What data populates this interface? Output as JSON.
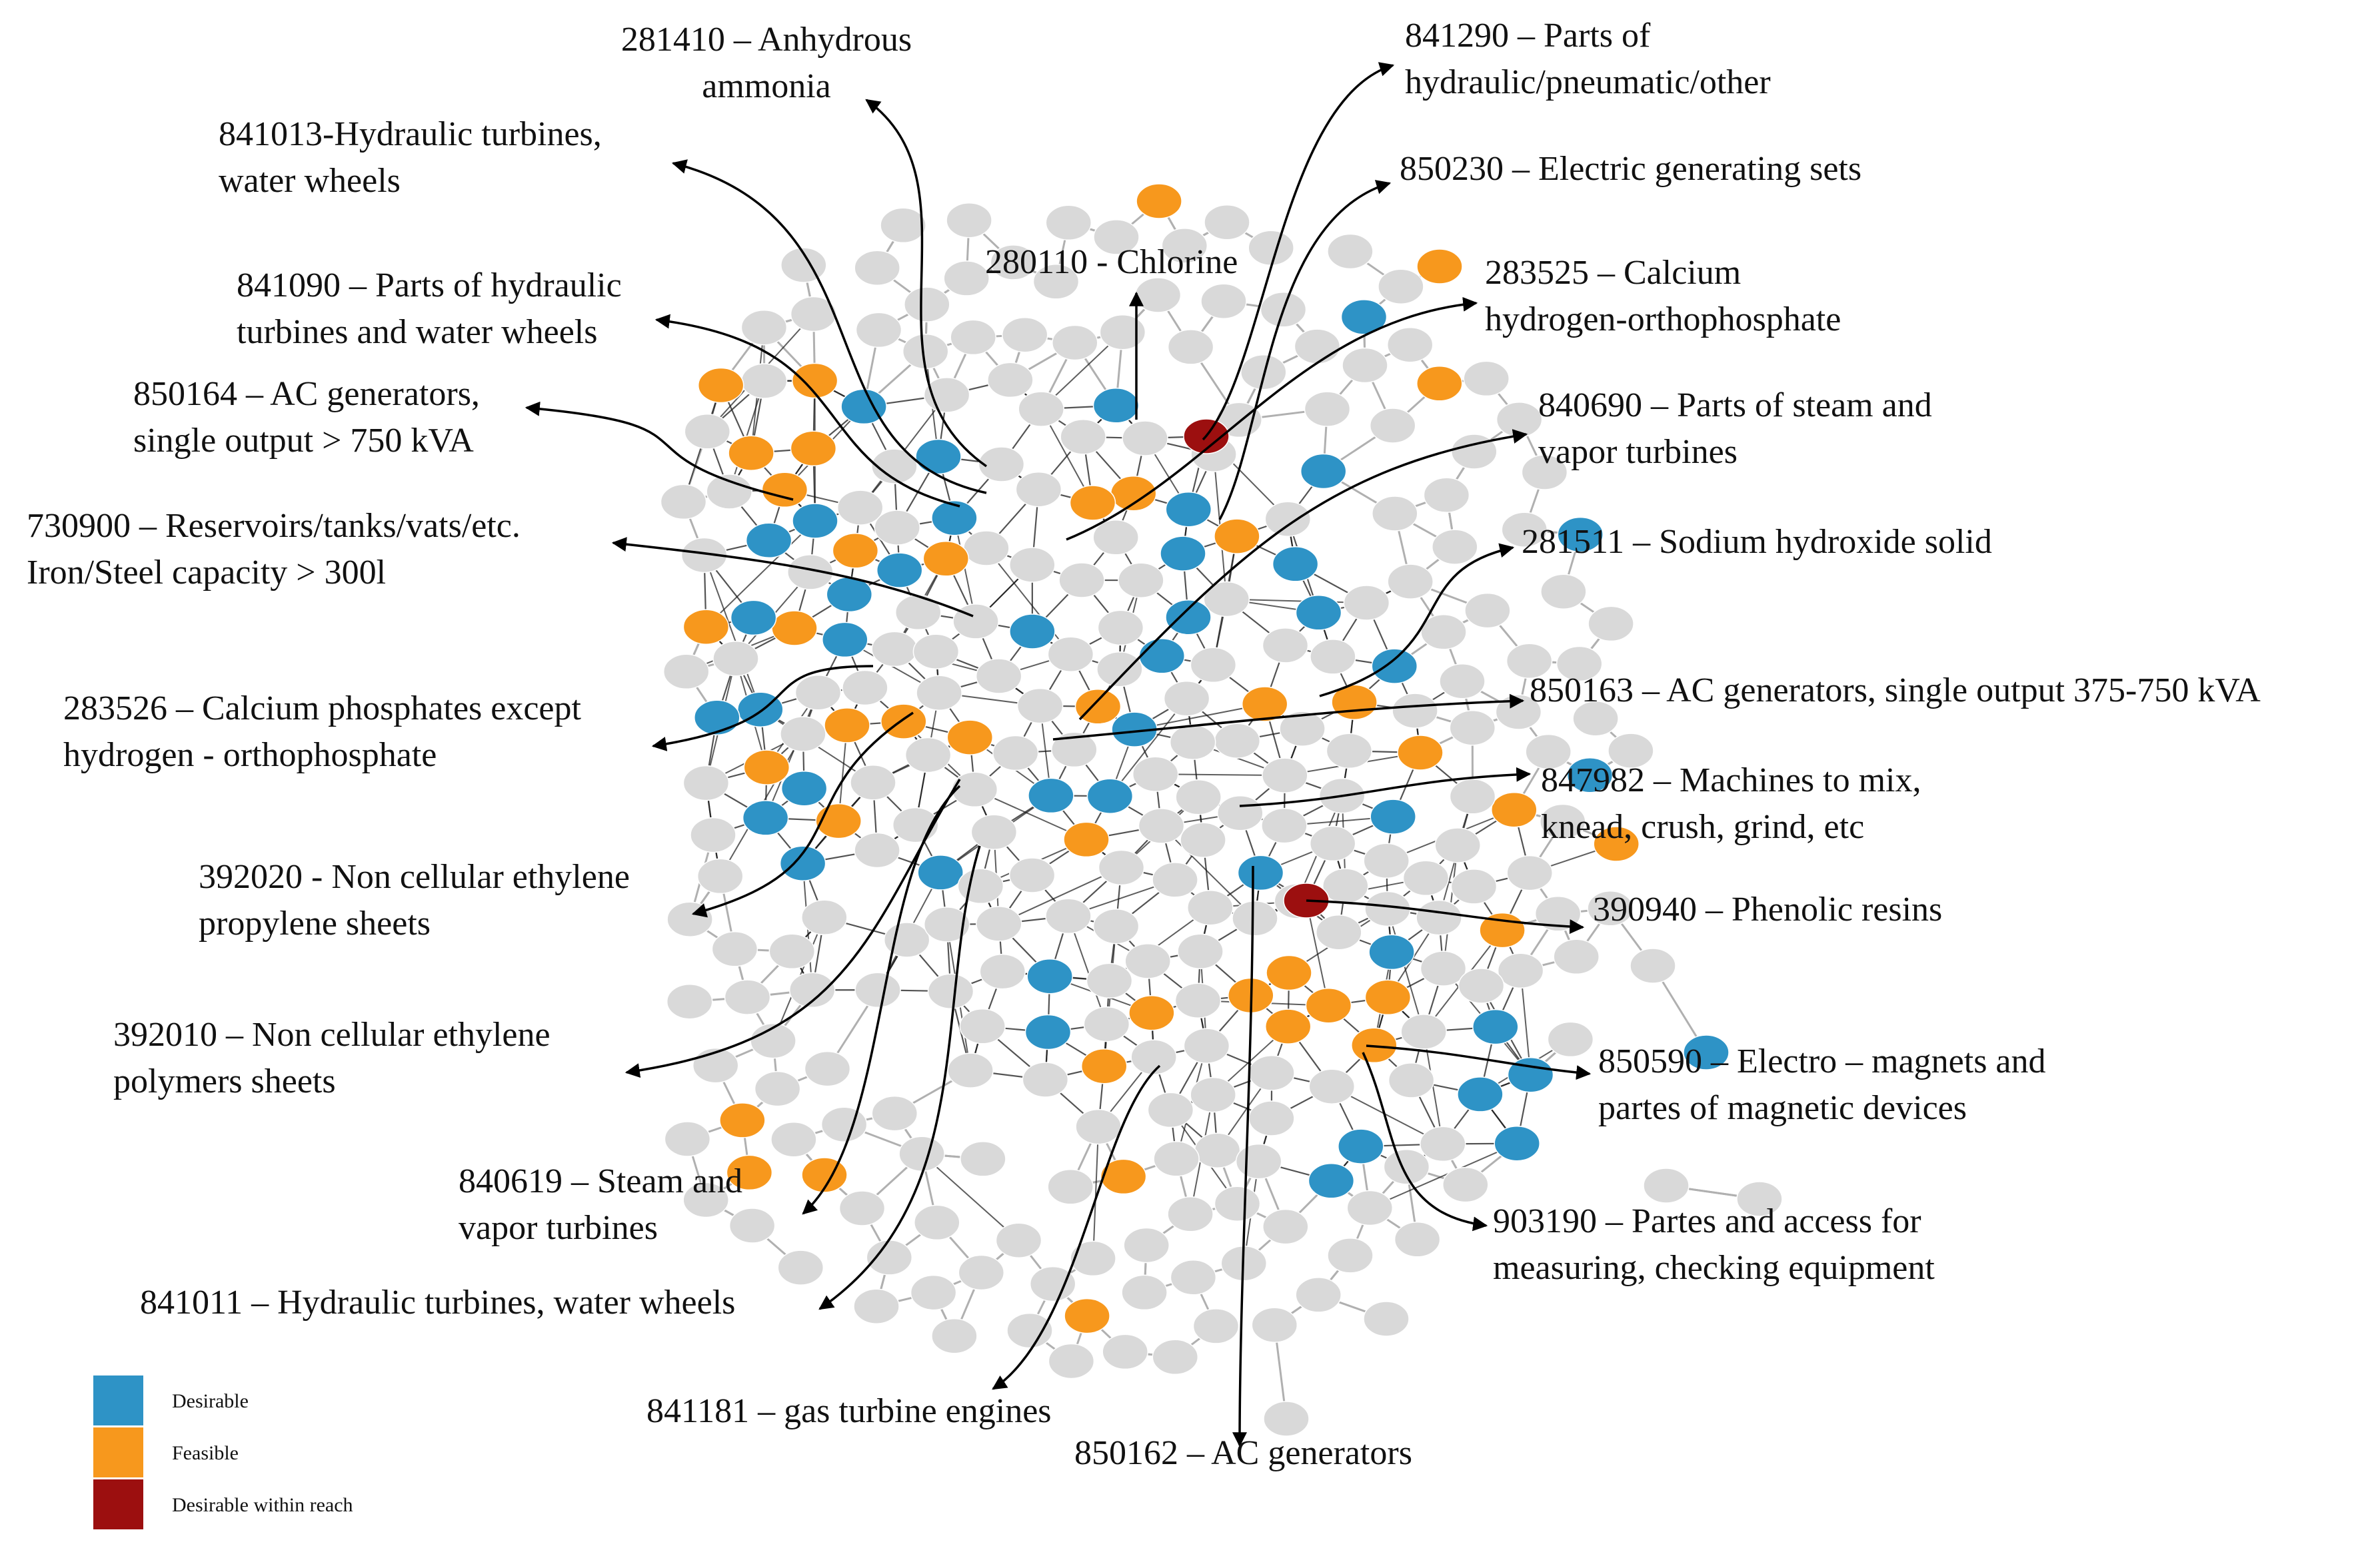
{
  "colors": {
    "desirable": "#2e93c6",
    "feasible": "#f7981d",
    "desirable_within_reach": "#9c0f0f",
    "other": "#d9d9d9",
    "edge_core": "#1a1a1a",
    "edge_outer": "#b0b0b0",
    "arrow": "#000000"
  },
  "legend": [
    {
      "key": "desirable",
      "label": "Desirable"
    },
    {
      "key": "feasible",
      "label": "Feasible"
    },
    {
      "key": "desirable_within_reach",
      "label": "Desirable within reach"
    }
  ],
  "labels": [
    {
      "id": "281410",
      "lines": [
        "281410 – Anhydrous",
        "ammonia"
      ]
    },
    {
      "id": "841290",
      "lines": [
        "841290 – Parts of",
        "hydraulic/pneumatic/other"
      ]
    },
    {
      "id": "841013",
      "lines": [
        "841013-Hydraulic turbines,",
        "water wheels"
      ]
    },
    {
      "id": "850230",
      "lines": [
        "850230 – Electric generating sets"
      ]
    },
    {
      "id": "280110",
      "lines": [
        "280110 - Chlorine"
      ]
    },
    {
      "id": "283525",
      "lines": [
        "283525 – Calcium",
        "hydrogen-orthophosphate"
      ]
    },
    {
      "id": "841090",
      "lines": [
        "841090 – Parts of hydraulic",
        "turbines and water wheels"
      ]
    },
    {
      "id": "850164",
      "lines": [
        "850164 – AC generators,",
        "single output > 750 kVA"
      ]
    },
    {
      "id": "840690",
      "lines": [
        "840690 – Parts of steam and",
        "vapor turbines"
      ]
    },
    {
      "id": "730900",
      "lines": [
        "730900 – Reservoirs/tanks/vats/etc.",
        "Iron/Steel capacity > 300l"
      ]
    },
    {
      "id": "281511",
      "lines": [
        "281511 – Sodium hydroxide solid"
      ]
    },
    {
      "id": "283526",
      "lines": [
        "283526 – Calcium phosphates except",
        "hydrogen - orthophosphate"
      ]
    },
    {
      "id": "850163",
      "lines": [
        "850163 – AC generators, single output 375-750 kVA"
      ]
    },
    {
      "id": "847982",
      "lines": [
        "847982 – Machines to mix,",
        "knead, crush, grind, etc"
      ]
    },
    {
      "id": "392020",
      "lines": [
        "392020 - Non cellular ethylene",
        "propylene sheets"
      ]
    },
    {
      "id": "390940",
      "lines": [
        "390940 – Phenolic resins"
      ]
    },
    {
      "id": "392010",
      "lines": [
        "392010 – Non cellular ethylene",
        "polymers sheets"
      ]
    },
    {
      "id": "850590",
      "lines": [
        "850590 – Electro – magnets and",
        "partes of magnetic devices"
      ]
    },
    {
      "id": "840619",
      "lines": [
        "840619 – Steam and",
        "vapor turbines"
      ]
    },
    {
      "id": "903190",
      "lines": [
        "903190 – Partes and access for",
        "measuring, checking equipment"
      ]
    },
    {
      "id": "841011",
      "lines": [
        "841011 – Hydraulic turbines, water wheels"
      ]
    },
    {
      "id": "841181",
      "lines": [
        "841181 – gas turbine engines"
      ]
    },
    {
      "id": "850162",
      "lines": [
        "850162 – AC generators"
      ]
    }
  ]
}
